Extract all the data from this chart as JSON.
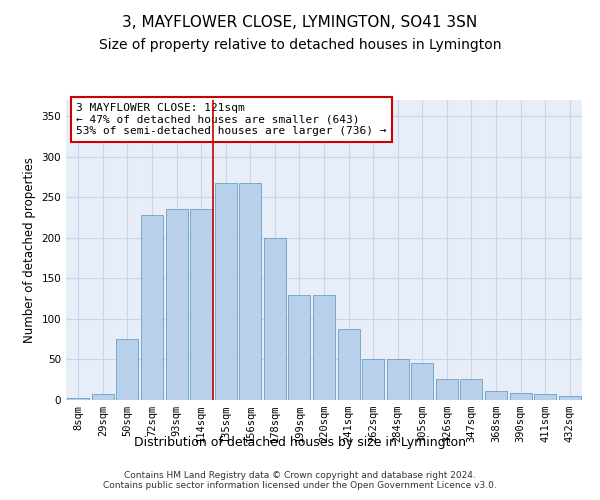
{
  "title": "3, MAYFLOWER CLOSE, LYMINGTON, SO41 3SN",
  "subtitle": "Size of property relative to detached houses in Lymington",
  "xlabel": "Distribution of detached houses by size in Lymington",
  "ylabel": "Number of detached properties",
  "categories": [
    "8sqm",
    "29sqm",
    "50sqm",
    "72sqm",
    "93sqm",
    "114sqm",
    "135sqm",
    "156sqm",
    "178sqm",
    "199sqm",
    "220sqm",
    "241sqm",
    "262sqm",
    "284sqm",
    "305sqm",
    "326sqm",
    "347sqm",
    "368sqm",
    "390sqm",
    "411sqm",
    "432sqm"
  ],
  "values": [
    2,
    8,
    75,
    228,
    235,
    235,
    268,
    268,
    200,
    130,
    130,
    87,
    50,
    50,
    46,
    26,
    26,
    11,
    9,
    7,
    5
  ],
  "bar_color": "#b8d0ea",
  "bar_edge_color": "#6a9fc8",
  "grid_color": "#c8d4e8",
  "background_color": "#e8eef8",
  "vline_color": "#cc0000",
  "annotation_text": "3 MAYFLOWER CLOSE: 121sqm\n← 47% of detached houses are smaller (643)\n53% of semi-detached houses are larger (736) →",
  "annotation_box_color": "#ffffff",
  "annotation_box_edge_color": "#cc0000",
  "footer_text": "Contains HM Land Registry data © Crown copyright and database right 2024.\nContains public sector information licensed under the Open Government Licence v3.0.",
  "ylim": [
    0,
    370
  ],
  "title_fontsize": 11,
  "subtitle_fontsize": 10,
  "xlabel_fontsize": 9,
  "ylabel_fontsize": 8.5,
  "tick_fontsize": 7.5,
  "annotation_fontsize": 8,
  "footer_fontsize": 6.5
}
